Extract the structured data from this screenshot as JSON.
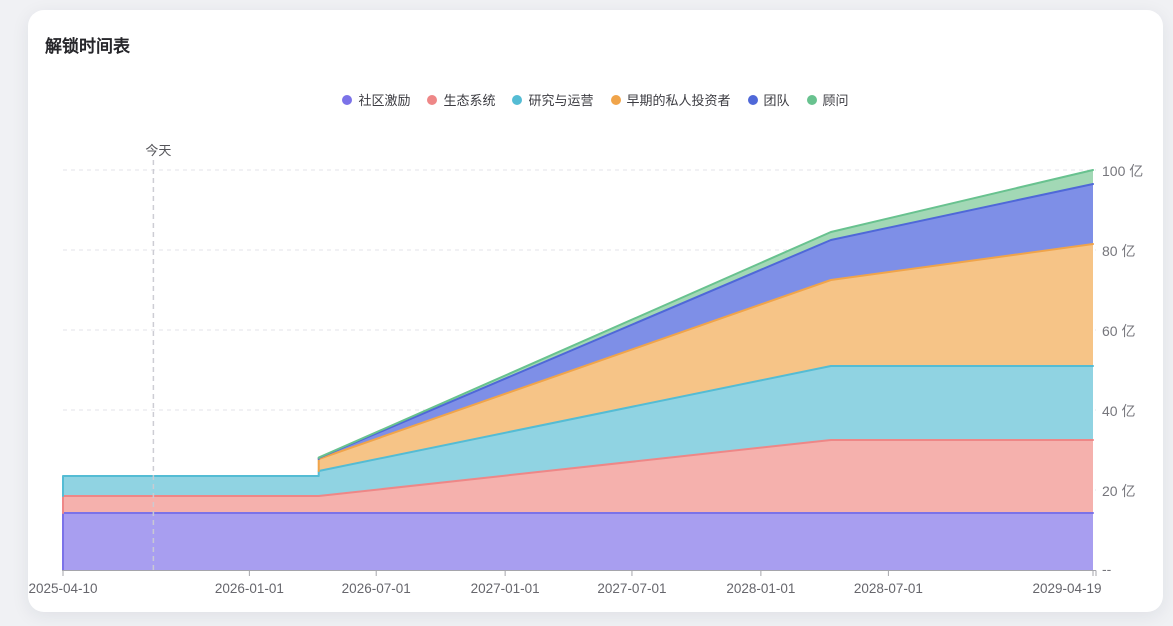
{
  "card": {
    "title": "解锁时间表"
  },
  "chart_data": {
    "type": "area",
    "stacked": true,
    "title": "解锁时间表",
    "y_unit": "亿",
    "ylim": [
      0,
      100
    ],
    "grid": "horizontal-dashed",
    "legend_position": "top-center",
    "today_marker": {
      "label": "今天",
      "day": 129
    },
    "x_axis": {
      "total_days": 1470,
      "ticks": [
        {
          "label": "2025-04-10",
          "day": 0
        },
        {
          "label": "2026-01-01",
          "day": 266
        },
        {
          "label": "2026-07-01",
          "day": 447
        },
        {
          "label": "2027-01-01",
          "day": 631
        },
        {
          "label": "2027-07-01",
          "day": 812
        },
        {
          "label": "2028-01-01",
          "day": 996
        },
        {
          "label": "2028-07-01",
          "day": 1178
        },
        {
          "label": "2029-04-19",
          "day": 1470
        }
      ]
    },
    "y_axis": {
      "ticks": [
        {
          "label": "100 亿",
          "value": 100
        },
        {
          "label": "80 亿",
          "value": 80
        },
        {
          "label": "60 亿",
          "value": 60
        },
        {
          "label": "40 亿",
          "value": 40
        },
        {
          "label": "20 亿",
          "value": 20
        },
        {
          "label": "--",
          "value": 0
        }
      ]
    },
    "x_breakpoints": {
      "days": [
        0,
        129,
        365,
        365,
        1096,
        1470
      ],
      "labels": [
        "start",
        "today",
        "cliff-before",
        "cliff-after",
        "slope-change",
        "end"
      ]
    },
    "series": [
      {
        "name": "社区激励",
        "line_color": "#7b72e8",
        "fill_color": "#a89ef0",
        "values": [
          14.25,
          14.25,
          14.25,
          14.25,
          14.25,
          14.25
        ]
      },
      {
        "name": "生态系统",
        "line_color": "#ee8787",
        "fill_color": "#f5b1ad",
        "values": [
          4.25,
          4.25,
          4.25,
          4.25,
          18.25,
          18.25
        ]
      },
      {
        "name": "研究与运营",
        "line_color": "#54bcd4",
        "fill_color": "#90d3e2",
        "values": [
          5.0,
          5.0,
          5.0,
          6.25,
          18.5,
          18.5
        ]
      },
      {
        "name": "早期的私人投资者",
        "line_color": "#f0a44a",
        "fill_color": "#f6c487",
        "values": [
          0,
          0,
          0,
          3.0,
          21.5,
          30.5
        ]
      },
      {
        "name": "团队",
        "line_color": "#4f68d8",
        "fill_color": "#7e8fe7",
        "values": [
          0,
          0,
          0,
          0.25,
          10.0,
          15.0
        ]
      },
      {
        "name": "顾问",
        "line_color": "#68c28f",
        "fill_color": "#a2d8b5",
        "values": [
          0,
          0,
          0,
          0.1,
          2.0,
          3.5
        ]
      }
    ]
  }
}
